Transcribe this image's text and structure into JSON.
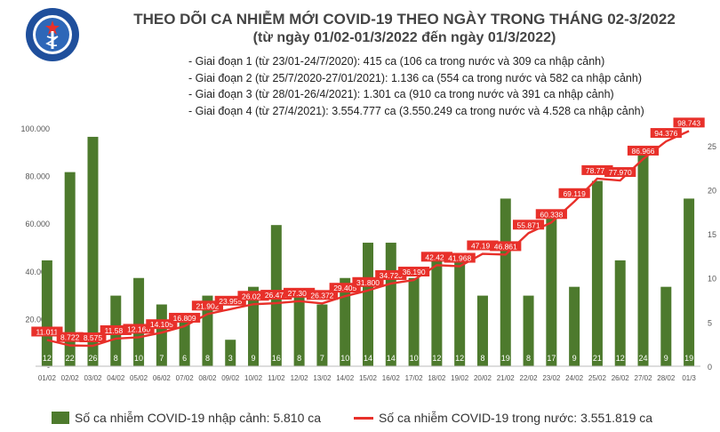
{
  "header": {
    "logo_text_top": "BỘ Y TẾ",
    "logo_text_bottom": "MINISTRY OF HEALTH",
    "title": "THEO DÕI CA NHIỄM MỚI COVID-19 THEO NGÀY TRONG THÁNG 02-3/2022",
    "subtitle": "(từ ngày 01/02-01/3/2022 đến ngày 01/3/2022)"
  },
  "phases": [
    "- Giai đoạn 1 (từ 23/01-24/7/2020): 415 ca (106 ca trong nước và 309 ca nhập cảnh)",
    "- Giai đoạn 2 (từ 25/7/2020-27/01/2021): 1.136 ca (554 ca trong nước và 582 ca nhập cảnh)",
    "- Giai đoạn 3 (từ 28/01-26/4/2021): 1.301 ca (910 ca trong nước và 391 ca nhập cảnh)",
    "- Giai đoạn 4 (từ 27/4/2021): 3.554.777 ca (3.550.249 ca trong nước và 4.528 ca nhập cảnh)"
  ],
  "legend": {
    "bars": "Số ca nhiễm COVID-19 nhập cảnh: 5.810 ca",
    "line": "Số ca nhiễm COVID-19 trong nước: 3.551.819 ca"
  },
  "colors": {
    "bar": "#4d7a2d",
    "line": "#e8302a",
    "bar_label": "#ffffff",
    "axis_text": "#555555"
  },
  "chart_data": {
    "type": "bar+line",
    "categories": [
      "01/02",
      "02/02",
      "03/02",
      "04/02",
      "05/02",
      "06/02",
      "07/02",
      "08/02",
      "09/02",
      "10/02",
      "11/02",
      "12/02",
      "13/02",
      "14/02",
      "15/02",
      "16/02",
      "17/02",
      "18/02",
      "19/02",
      "20/02",
      "21/02",
      "22/02",
      "23/02",
      "24/02",
      "25/02",
      "26/02",
      "27/02",
      "28/02",
      "01/3"
    ],
    "bars": {
      "name": "Số ca nhiễm COVID-19 nhập cảnh: 5.810 ca",
      "axis": "right",
      "values": [
        12,
        22,
        26,
        8,
        10,
        7,
        6,
        8,
        3,
        9,
        16,
        8,
        7,
        10,
        14,
        14,
        10,
        12,
        12,
        8,
        19,
        8,
        17,
        9,
        21,
        12,
        24,
        9,
        19
      ],
      "labels": [
        "12",
        "22",
        "26",
        "8",
        "10",
        "7",
        "6",
        "8",
        "3",
        "9",
        "16",
        "8",
        "7",
        "10",
        "14",
        "14",
        "10",
        "12",
        "12",
        "8",
        "19",
        "8",
        "17",
        "9",
        "21",
        "12",
        "24",
        "9",
        "19"
      ]
    },
    "line": {
      "name": "Số ca nhiễm COVID-19 trong nước: 3.551.819 ca",
      "axis": "left",
      "values": [
        11011,
        8722,
        8575,
        11580,
        12160,
        14105,
        16809,
        21902,
        23955,
        26025,
        26475,
        27302,
        26372,
        29405,
        31800,
        34723,
        36190,
        42427,
        41968,
        47197,
        46861,
        55871,
        60338,
        69119,
        78774,
        77970,
        86966,
        94376,
        98743
      ],
      "labels": [
        "11.011",
        "8.722",
        "8.575",
        "11.580",
        "12.160",
        "14.105",
        "16.809",
        "21.902",
        "23.955",
        "26.025",
        "26.475",
        "27.302",
        "26.372",
        "29.405",
        "31.800",
        "34.723",
        "36.190",
        "42.427",
        "41.968",
        "47.197",
        "46.861",
        "55.871",
        "60.338",
        "69.119",
        "78.774",
        "77.970",
        "86.966",
        "94.376",
        "98.743"
      ]
    },
    "left_axis": {
      "range": [
        0,
        100000
      ],
      "ticks": [
        0,
        20000,
        40000,
        60000,
        80000,
        100000
      ],
      "tick_labels": [
        "-",
        "20.000",
        "40.000",
        "60.000",
        "80.000",
        "100.000"
      ]
    },
    "right_axis": {
      "range": [
        0,
        27
      ],
      "ticks": [
        0,
        5,
        10,
        15,
        20,
        25
      ],
      "tick_labels": [
        "0",
        "5",
        "10",
        "15",
        "20",
        "25"
      ]
    },
    "grid": false,
    "legend_position": "bottom"
  }
}
